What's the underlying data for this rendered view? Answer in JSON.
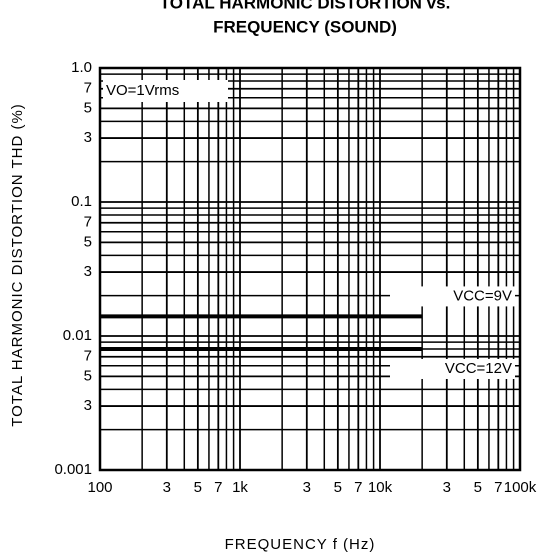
{
  "chart_data": {
    "type": "line",
    "title": [
      "TOTAL HARMONIC DISTORTION vs.",
      "FREQUENCY (SOUND)"
    ],
    "x_label": "FREQUENCY  f (Hz)",
    "y_label": "TOTAL HARMONIC DISTORTION  THD (%)",
    "annotation": "VO=1Vrms",
    "log_x": true,
    "log_y": true,
    "grid": true,
    "xlim": [
      100,
      100000
    ],
    "ylim": [
      0.001,
      1
    ],
    "xticks": [
      100,
      {
        "value": 300,
        "label": "3"
      },
      {
        "value": 500,
        "label": "5"
      },
      {
        "value": 700,
        "label": "7"
      },
      {
        "value": 1000,
        "label": "1k"
      },
      {
        "value": 3000,
        "label": "3"
      },
      {
        "value": 5000,
        "label": "5"
      },
      {
        "value": 7000,
        "label": "7"
      },
      {
        "value": 10000,
        "label": "10k"
      },
      {
        "value": 30000,
        "label": "3"
      },
      {
        "value": 50000,
        "label": "5"
      },
      {
        "value": 70000,
        "label": "7"
      },
      {
        "value": 100000,
        "label": "100k"
      }
    ],
    "xminor": [
      200,
      400,
      600,
      800,
      900,
      2000,
      4000,
      6000,
      8000,
      9000,
      20000,
      40000,
      60000,
      80000,
      90000
    ],
    "yticks": [
      {
        "value": 1,
        "label": "1.0"
      },
      {
        "value": 0.7,
        "label": "7"
      },
      {
        "value": 0.5,
        "label": "5"
      },
      {
        "value": 0.3,
        "label": "3"
      },
      0.1,
      {
        "value": 0.07,
        "label": "7"
      },
      {
        "value": 0.05,
        "label": "5"
      },
      {
        "value": 0.03,
        "label": "3"
      },
      0.01,
      {
        "value": 0.007,
        "label": "7"
      },
      {
        "value": 0.005,
        "label": "5"
      },
      {
        "value": 0.003,
        "label": "3"
      },
      0.001
    ],
    "yminor": [
      0.9,
      0.8,
      0.6,
      0.4,
      0.2,
      0.09,
      0.08,
      0.06,
      0.04,
      0.02,
      0.009,
      0.008,
      0.006,
      0.004,
      0.002
    ],
    "x": [
      100,
      20000
    ],
    "series": [
      {
        "name": "VCC=9V",
        "color": "#000000",
        "values": [
          0.014,
          0.014
        ]
      },
      {
        "name": "VCC=12V",
        "color": "#000000",
        "values": [
          0.008,
          0.008
        ]
      }
    ]
  }
}
